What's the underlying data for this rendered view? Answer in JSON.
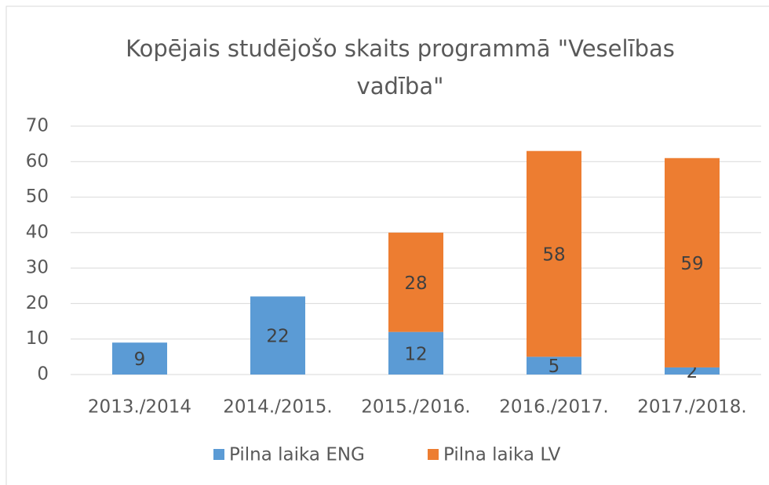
{
  "chart_data": {
    "type": "stacked_bar",
    "title": "Kopējais studējošo skaits programmā \"Veselības vadība\"",
    "categories": [
      "2013./2014",
      "2014./2015.",
      "2015./2016.",
      "2016./2017.",
      "2017./2018."
    ],
    "series": [
      {
        "name": "Pilna laika ENG",
        "color": "#5b9bd5",
        "values": [
          9,
          22,
          12,
          5,
          2
        ]
      },
      {
        "name": "Pilna laika LV",
        "color": "#ed7d31",
        "values": [
          null,
          null,
          28,
          58,
          59
        ]
      }
    ],
    "ylim": [
      0,
      70
    ],
    "yticks": [
      0,
      10,
      20,
      30,
      40,
      50,
      60,
      70
    ],
    "grid": true,
    "legend": "bottom"
  }
}
